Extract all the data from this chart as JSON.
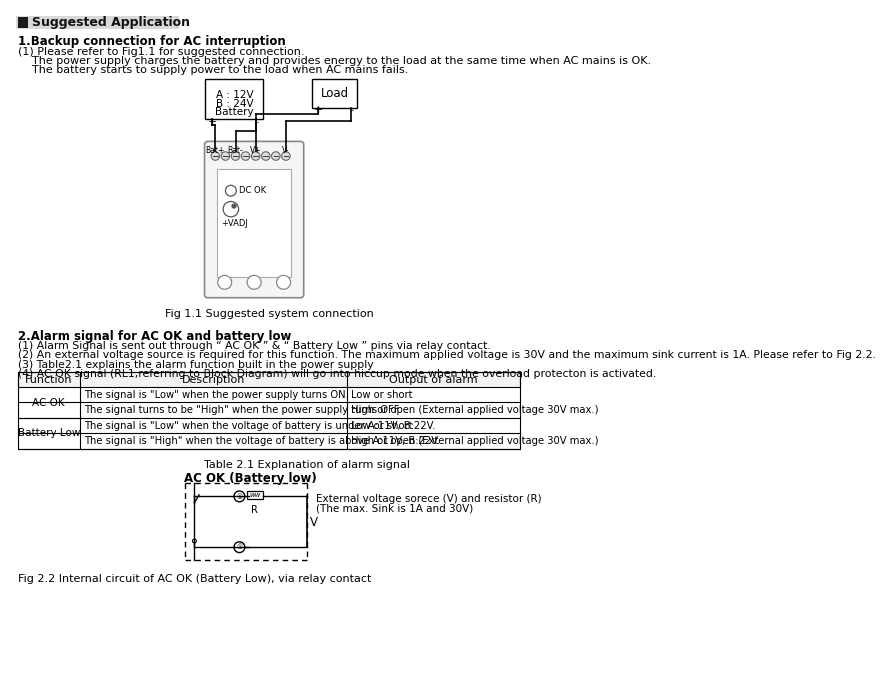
{
  "title": "Suggested Application",
  "section1_title": "1.Backup connection for AC interruption",
  "section1_p1": "(1) Please refer to Fig1.1 for suggested connection.",
  "section1_p2": "    The power supply charges the battery and provides energy to the load at the same time when AC mains is OK.",
  "section1_p3": "    The battery starts to supply power to the load when AC mains fails.",
  "fig1_caption": "Fig 1.1 Suggested system connection",
  "section2_title": "2.Alarm signal for AC OK and battery low",
  "section2_items": [
    "(1) Alarm Signal is sent out through “ AC OK ” & “ Battery Low ” pins via relay contact.",
    "(2) An external voltage source is required for this function. The maximum applied voltage is 30V and the maximum sink current is 1A. Please refer to Fig 2.2.",
    "(3) Table2.1 explains the alarm function built in the power supply",
    "(4) AC OK signal (RL1,referring to Block Diagram) will go into hiccup mode when the overload protecton is activated."
  ],
  "table_caption": "Table 2.1 Explanation of alarm signal",
  "table_headers": [
    "Function",
    "Description",
    "Output of alarm"
  ],
  "table_rows": [
    [
      "AC OK",
      "The signal is \"Low\" when the power supply turns ON.",
      "Low or short"
    ],
    [
      "",
      "The signal turns to be \"High\" when the power supply turns OFF.",
      "High or open (External applied voltage 30V max.)"
    ],
    [
      "Battery Low",
      "The signal is \"Low\" when the voltage of battery is under A:11V, B:22V.",
      "Low or short"
    ],
    [
      "",
      "The signal is \"High\" when the voltage of battery is above A:11V, B:22V.",
      "High or open (External applied voltage 30V max.)"
    ]
  ],
  "fig2_label": "AC OK (Battery low)",
  "fig2_ext_label1": "External voltage sorece (V) and resistor (R)",
  "fig2_ext_label2": "(The max. Sink is 1A and 30V)",
  "fig2_caption": "Fig 2.2 Internal circuit of AC OK (Battery Low), via relay contact",
  "bg_color": "#ffffff",
  "text_color": "#000000",
  "line_color": "#000000"
}
